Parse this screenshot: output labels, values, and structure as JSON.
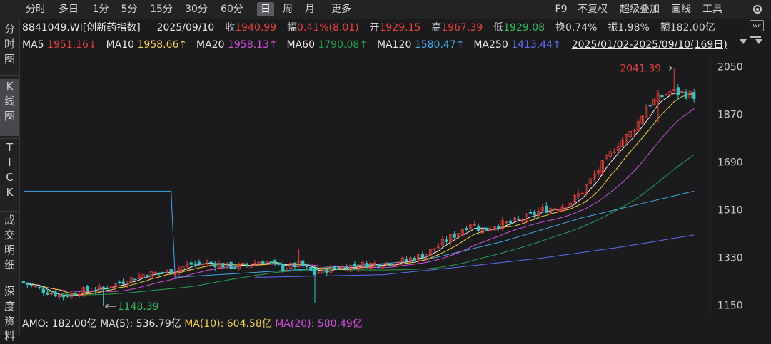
{
  "colors": {
    "bg": "#1b1b1e",
    "up": "#e8413b",
    "down": "#2fc7c8",
    "ma5": "#f0f0f0",
    "ma10": "#f2d13c",
    "ma20": "#d14fd9",
    "ma60": "#24a14a",
    "ma120": "#3fa8e8",
    "ma250": "#5b6df2"
  },
  "toolbar": {
    "periods": [
      "分时",
      "多日",
      "1分",
      "5分",
      "15分",
      "30分",
      "60分",
      "日",
      "周",
      "月",
      "更多"
    ],
    "active_period": "日",
    "right": [
      "F9",
      "不复权",
      "超级叠加",
      "画线",
      "工具"
    ],
    "settings_icon": "gear-icon"
  },
  "sidebar": {
    "items": [
      "分时图",
      "K线图",
      "TICK",
      "成交明细",
      "深度资料"
    ],
    "active": "K线图"
  },
  "info": {
    "code_name": "8841049.WI[创新药指数]",
    "date": "2025/09/10",
    "close_label": "收",
    "close": "1940.99",
    "change_label": "幅",
    "change": "0.41%(8.01)",
    "open_label": "开",
    "open": "1929.15",
    "high_label": "高",
    "high": "1967.39",
    "low_label": "低",
    "low": "1929.08",
    "turnover_label": "换",
    "turnover": "0.74%",
    "amplitude_label": "振",
    "amplitude": "1.98%",
    "amount_label": "额",
    "amount": "182.00亿"
  },
  "ma_row": {
    "ma5_label": "MA5",
    "ma5": "1951.16↓",
    "ma10_label": "MA10",
    "ma10": "1958.66↑",
    "ma20_label": "MA20",
    "ma20": "1958.13↑",
    "ma60_label": "MA60",
    "ma60": "1790.08↑",
    "ma120_label": "MA120",
    "ma120": "1580.47↑",
    "ma250_label": "MA250",
    "ma250": "1413.44↑",
    "range": "2025/01/02-2025/09/10(169日)"
  },
  "bottom": {
    "amo_label": "AMO:",
    "amo": "182.00亿",
    "ma5_label": "MA(5):",
    "ma5": "536.79亿",
    "ma10_label": "MA(10):",
    "ma10": "604.58亿",
    "ma20_label": "MA(20):",
    "ma20": "580.49亿"
  },
  "chart_data": {
    "type": "candlestick",
    "ylim": [
      1130,
      2075
    ],
    "y_ticks": [
      "2050",
      "1870",
      "1690",
      "1510",
      "1330",
      "1150"
    ],
    "y_tick_values": [
      2050,
      1870,
      1690,
      1510,
      1330,
      1150
    ],
    "high_annotation": "2041.39",
    "low_annotation": "1148.39",
    "days": 169,
    "close_anchors": [
      [
        0,
        1235
      ],
      [
        6,
        1200
      ],
      [
        10,
        1185
      ],
      [
        15,
        1205
      ],
      [
        20,
        1215
      ],
      [
        25,
        1240
      ],
      [
        30,
        1265
      ],
      [
        36,
        1275
      ],
      [
        42,
        1305
      ],
      [
        47,
        1310
      ],
      [
        52,
        1295
      ],
      [
        56,
        1300
      ],
      [
        60,
        1318
      ],
      [
        65,
        1290
      ],
      [
        69,
        1305
      ],
      [
        73,
        1268
      ],
      [
        77,
        1290
      ],
      [
        82,
        1298
      ],
      [
        87,
        1305
      ],
      [
        92,
        1312
      ],
      [
        96,
        1320
      ],
      [
        101,
        1345
      ],
      [
        105,
        1385
      ],
      [
        109,
        1425
      ],
      [
        112,
        1460
      ],
      [
        115,
        1430
      ],
      [
        118,
        1452
      ],
      [
        122,
        1460
      ],
      [
        126,
        1480
      ],
      [
        130,
        1510
      ],
      [
        134,
        1520
      ],
      [
        137,
        1540
      ],
      [
        140,
        1580
      ],
      [
        143,
        1640
      ],
      [
        146,
        1700
      ],
      [
        149,
        1760
      ],
      [
        152,
        1800
      ],
      [
        154,
        1840
      ],
      [
        156,
        1900
      ],
      [
        159,
        1930
      ],
      [
        162,
        1955
      ],
      [
        165,
        1950
      ],
      [
        168,
        1941
      ]
    ],
    "ma120_anchor": [
      [
        38,
        1255
      ],
      [
        70,
        1285
      ],
      [
        100,
        1318
      ],
      [
        120,
        1390
      ],
      [
        140,
        1480
      ],
      [
        168,
        1580
      ]
    ],
    "ma250_anchor": [
      [
        58,
        1255
      ],
      [
        90,
        1265
      ],
      [
        110,
        1295
      ],
      [
        130,
        1328
      ],
      [
        150,
        1370
      ],
      [
        168,
        1415
      ]
    ]
  }
}
